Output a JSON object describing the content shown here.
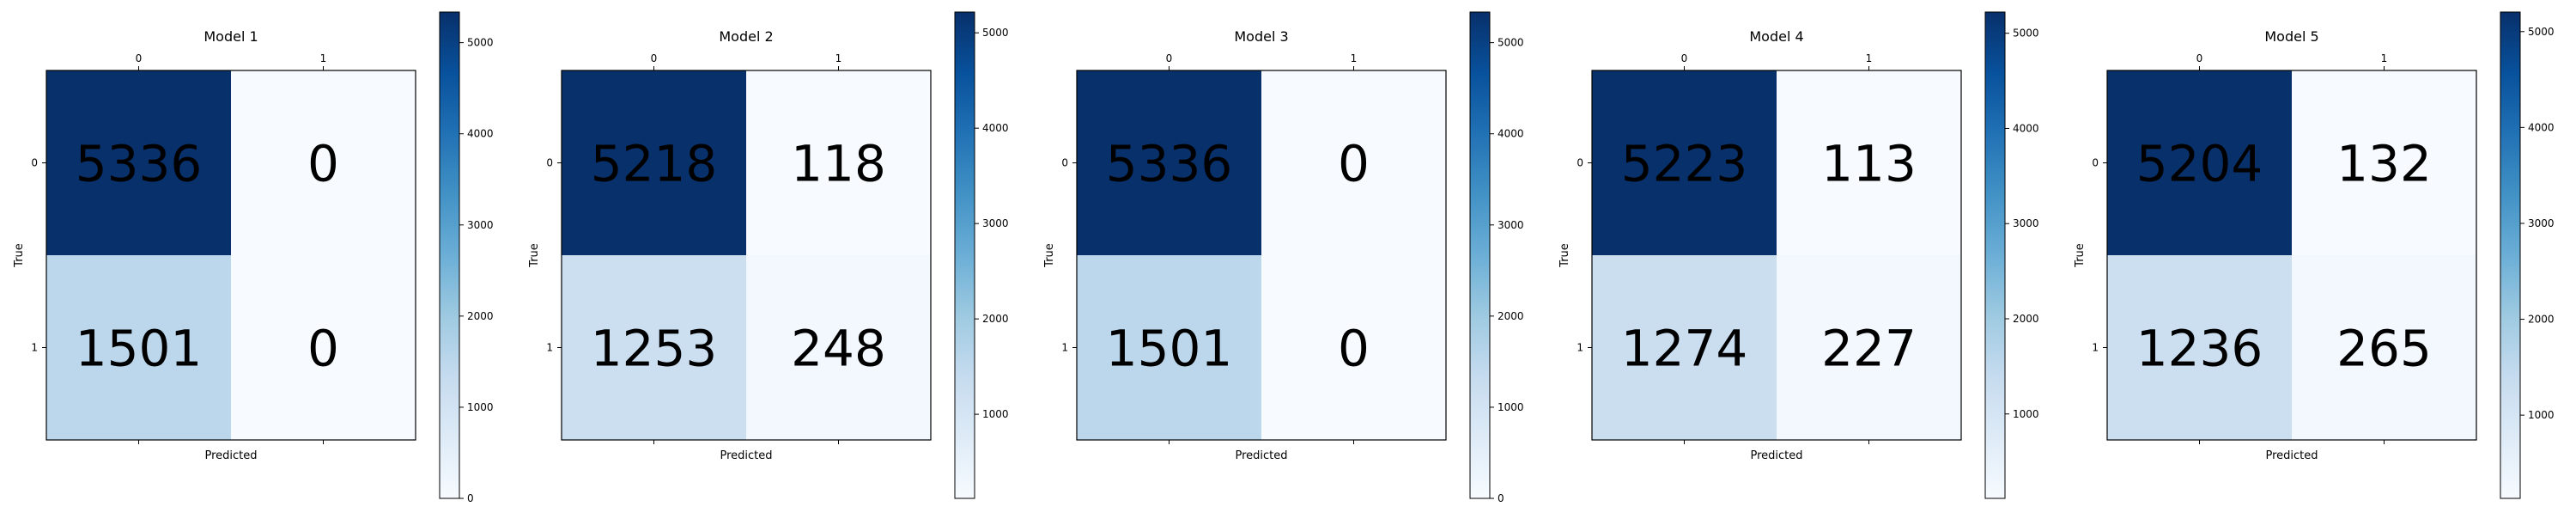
{
  "chart_data": [
    {
      "type": "heatmap",
      "title": "Model 1",
      "xlabel": "Predicted",
      "ylabel": "True",
      "x_tick_labels": [
        "0",
        "1"
      ],
      "y_tick_labels": [
        "0",
        "1"
      ],
      "matrix": [
        [
          5336,
          0
        ],
        [
          1501,
          0
        ]
      ],
      "colormap": "Blues",
      "colorbar": {
        "min": 0,
        "max": 5336,
        "ticks": [
          0,
          1000,
          2000,
          3000,
          4000,
          5000
        ]
      }
    },
    {
      "type": "heatmap",
      "title": "Model 2",
      "xlabel": "Predicted",
      "ylabel": "True",
      "x_tick_labels": [
        "0",
        "1"
      ],
      "y_tick_labels": [
        "0",
        "1"
      ],
      "matrix": [
        [
          5218,
          118
        ],
        [
          1253,
          248
        ]
      ],
      "colormap": "Blues",
      "colorbar": {
        "min": 118,
        "max": 5218,
        "ticks": [
          1000,
          2000,
          3000,
          4000,
          5000
        ]
      }
    },
    {
      "type": "heatmap",
      "title": "Model 3",
      "xlabel": "Predicted",
      "ylabel": "True",
      "x_tick_labels": [
        "0",
        "1"
      ],
      "y_tick_labels": [
        "0",
        "1"
      ],
      "matrix": [
        [
          5336,
          0
        ],
        [
          1501,
          0
        ]
      ],
      "colormap": "Blues",
      "colorbar": {
        "min": 0,
        "max": 5336,
        "ticks": [
          0,
          1000,
          2000,
          3000,
          4000,
          5000
        ]
      }
    },
    {
      "type": "heatmap",
      "title": "Model 4",
      "xlabel": "Predicted",
      "ylabel": "True",
      "x_tick_labels": [
        "0",
        "1"
      ],
      "y_tick_labels": [
        "0",
        "1"
      ],
      "matrix": [
        [
          5223,
          113
        ],
        [
          1274,
          227
        ]
      ],
      "colormap": "Blues",
      "colorbar": {
        "min": 113,
        "max": 5223,
        "ticks": [
          1000,
          2000,
          3000,
          4000,
          5000
        ]
      }
    },
    {
      "type": "heatmap",
      "title": "Model 5",
      "xlabel": "Predicted",
      "ylabel": "True",
      "x_tick_labels": [
        "0",
        "1"
      ],
      "y_tick_labels": [
        "0",
        "1"
      ],
      "matrix": [
        [
          5204,
          132
        ],
        [
          1236,
          265
        ]
      ],
      "colormap": "Blues",
      "colorbar": {
        "min": 132,
        "max": 5204,
        "ticks": [
          1000,
          2000,
          3000,
          4000,
          5000
        ]
      }
    }
  ]
}
